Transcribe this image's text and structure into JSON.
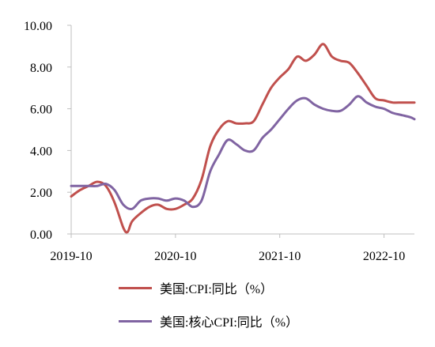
{
  "chart_data": {
    "type": "line",
    "title": "",
    "xlabel": "",
    "ylabel": "",
    "ylim": [
      0,
      10
    ],
    "y_ticks": [
      "0.00",
      "2.00",
      "4.00",
      "6.00",
      "8.00",
      "10.00"
    ],
    "x_ticks": [
      "2019-10",
      "2020-10",
      "2021-10",
      "2022-10"
    ],
    "x_tick_positions": [
      0,
      12,
      24,
      36
    ],
    "x_range": [
      0,
      39.5
    ],
    "grid": false,
    "legend_position": "bottom",
    "series": [
      {
        "name": "美国:CPI:同比（%）",
        "color": "#c0504d",
        "x": [
          0,
          1,
          2,
          3,
          4,
          5,
          6,
          6.5,
          7,
          8,
          9,
          10,
          11,
          12,
          13,
          14,
          15,
          16,
          17,
          18,
          19,
          20,
          21,
          22,
          23,
          24,
          25,
          26,
          27,
          28,
          29,
          30,
          31,
          32,
          33,
          34,
          35,
          36,
          37,
          38,
          39,
          39.5
        ],
        "values": [
          1.8,
          2.1,
          2.3,
          2.5,
          2.3,
          1.5,
          0.3,
          0.1,
          0.6,
          1.0,
          1.3,
          1.4,
          1.2,
          1.2,
          1.4,
          1.7,
          2.6,
          4.2,
          5.0,
          5.4,
          5.3,
          5.3,
          5.4,
          6.2,
          7.0,
          7.5,
          7.9,
          8.5,
          8.3,
          8.6,
          9.1,
          8.5,
          8.3,
          8.2,
          7.7,
          7.1,
          6.5,
          6.4,
          6.3,
          6.3,
          6.3,
          6.3
        ]
      },
      {
        "name": "美国:核心CPI:同比（%）",
        "color": "#8064a2",
        "x": [
          0,
          1,
          2,
          3,
          4,
          5,
          6,
          7,
          8,
          9,
          10,
          11,
          12,
          13,
          14,
          15,
          16,
          17,
          18,
          19,
          20,
          21,
          22,
          23,
          24,
          25,
          26,
          27,
          28,
          29,
          30,
          31,
          32,
          33,
          34,
          35,
          36,
          37,
          38,
          39,
          39.5
        ],
        "values": [
          2.3,
          2.3,
          2.3,
          2.3,
          2.4,
          2.1,
          1.4,
          1.2,
          1.6,
          1.7,
          1.7,
          1.6,
          1.7,
          1.6,
          1.3,
          1.6,
          3.0,
          3.8,
          4.5,
          4.3,
          4.0,
          4.0,
          4.6,
          5.0,
          5.5,
          6.0,
          6.4,
          6.5,
          6.2,
          6.0,
          5.9,
          5.9,
          6.2,
          6.6,
          6.3,
          6.1,
          6.0,
          5.8,
          5.7,
          5.6,
          5.5
        ]
      }
    ]
  }
}
